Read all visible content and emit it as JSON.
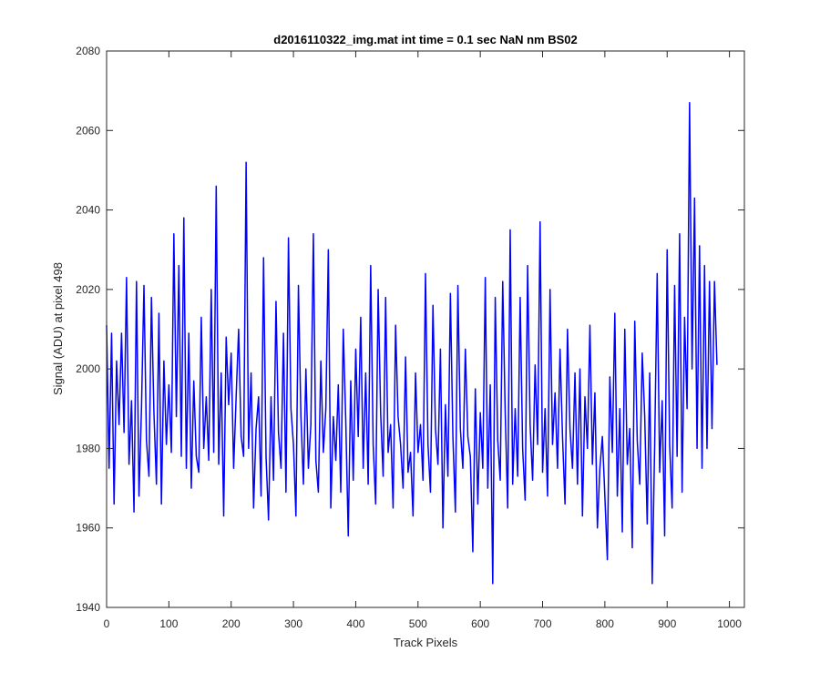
{
  "chart_data": {
    "type": "line",
    "title": "d2016110322_img.mat int time = 0.1 sec  NaN nm BS02",
    "xlabel": "Track Pixels",
    "ylabel": "Signal (ADU) at pixel 498",
    "xlim": [
      0,
      1024
    ],
    "ylim": [
      1940,
      2080
    ],
    "xticks": [
      0,
      100,
      200,
      300,
      400,
      500,
      600,
      700,
      800,
      900,
      1000
    ],
    "yticks": [
      1940,
      1960,
      1980,
      2000,
      2020,
      2040,
      2060,
      2080
    ],
    "grid": false,
    "line_color": "#0000ff",
    "sample_step": 4,
    "series": [
      {
        "values": [
          2011,
          1975,
          2009,
          1966,
          2002,
          1986,
          2009,
          1984,
          2023,
          1976,
          1992,
          1964,
          2022,
          1968,
          1990,
          2021,
          1982,
          1973,
          2018,
          1989,
          1971,
          2014,
          1966,
          2002,
          1981,
          1996,
          1979,
          2034,
          1988,
          2026,
          1978,
          2038,
          1975,
          2009,
          1970,
          1997,
          1978,
          1974,
          2013,
          1980,
          1993,
          1977,
          2020,
          1979,
          2046,
          1976,
          1999,
          1963,
          2008,
          1991,
          2004,
          1975,
          1993,
          2010,
          1983,
          1978,
          2052,
          1980,
          1999,
          1965,
          1985,
          1993,
          1968,
          2028,
          1978,
          1962,
          1993,
          1972,
          2017,
          1984,
          1975,
          2009,
          1969,
          2033,
          1990,
          1981,
          1963,
          2021,
          1988,
          1971,
          2000,
          1975,
          1986,
          2034,
          1977,
          1969,
          2002,
          1979,
          1990,
          2030,
          1965,
          1988,
          1977,
          1996,
          1969,
          2010,
          1987,
          1958,
          1997,
          1972,
          2005,
          1983,
          2013,
          1975,
          1999,
          1971,
          2026,
          1981,
          1966,
          2020,
          1989,
          1973,
          2018,
          1979,
          1986,
          1965,
          2011,
          1988,
          1981,
          1970,
          2003,
          1974,
          1979,
          1963,
          1999,
          1979,
          1986,
          1972,
          2024,
          1981,
          1969,
          2016,
          1985,
          1976,
          2005,
          1960,
          1991,
          1973,
          2019,
          1983,
          1964,
          2021,
          1985,
          1975,
          2005,
          1983,
          1978,
          1954,
          1995,
          1966,
          1989,
          1975,
          2023,
          1970,
          1996,
          1946,
          2018,
          1982,
          1972,
          2022,
          1989,
          1965,
          2035,
          1971,
          1990,
          1973,
          2018,
          1980,
          1967,
          2026,
          1986,
          1972,
          2001,
          1981,
          2037,
          1974,
          1990,
          1968,
          2020,
          1981,
          1994,
          1975,
          2005,
          1983,
          1966,
          2010,
          1985,
          1975,
          1999,
          1971,
          2000,
          1963,
          1993,
          1980,
          2011,
          1976,
          1994,
          1960,
          1975,
          1983,
          1968,
          1952,
          1998,
          1979,
          2014,
          1968,
          1990,
          1959,
          2010,
          1976,
          1985,
          1955,
          2012,
          1982,
          1971,
          2004,
          1988,
          1961,
          1999,
          1946,
          1981,
          2024,
          1974,
          1992,
          1958,
          2030,
          1981,
          1965,
          2021,
          1978,
          2034,
          1969,
          2013,
          1990,
          2067,
          2000,
          2043,
          1980,
          2031,
          1975,
          2026,
          1980,
          2022,
          1985,
          2022,
          2001
        ]
      }
    ]
  }
}
